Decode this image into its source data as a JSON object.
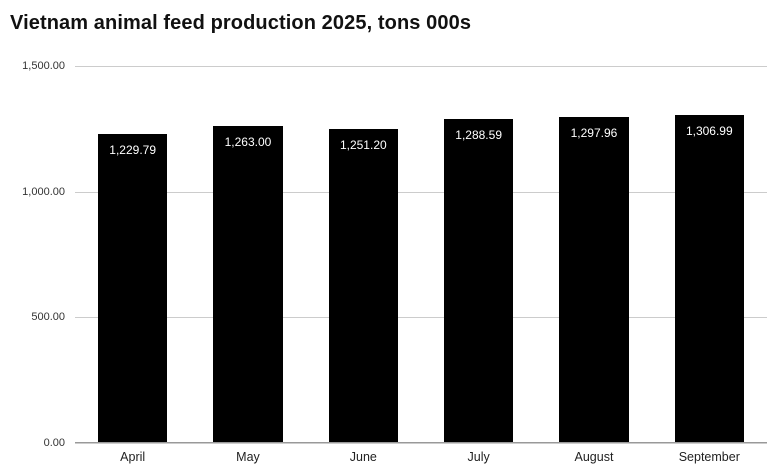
{
  "chart_data": {
    "type": "bar",
    "title": "Vietnam animal feed production 2025, tons 000s",
    "categories": [
      "April",
      "May",
      "June",
      "July",
      "August",
      "September"
    ],
    "values": [
      1229.79,
      1263.0,
      1251.2,
      1288.59,
      1297.96,
      1306.99
    ],
    "value_labels": [
      "1,229.79",
      "1,263.00",
      "1,251.20",
      "1,288.59",
      "1,297.96",
      "1,306.99"
    ],
    "series_name": "Production (tons 000s)",
    "xlabel": "",
    "ylabel": "",
    "ylim": [
      0,
      1500
    ],
    "y_ticks": [
      {
        "value": 0,
        "label": "0.00"
      },
      {
        "value": 500,
        "label": "500.00"
      },
      {
        "value": 1000,
        "label": "1,000.00"
      },
      {
        "value": 1500,
        "label": "1,500.00"
      }
    ],
    "grid": true,
    "legend_position": "none",
    "colors": {
      "bar": "#000000",
      "bar_label_text": "#ffffff",
      "gridline": "#cccccc",
      "axis_line": "#999999",
      "title_text": "#111111",
      "tick_text": "#333333",
      "background": "#ffffff"
    }
  }
}
